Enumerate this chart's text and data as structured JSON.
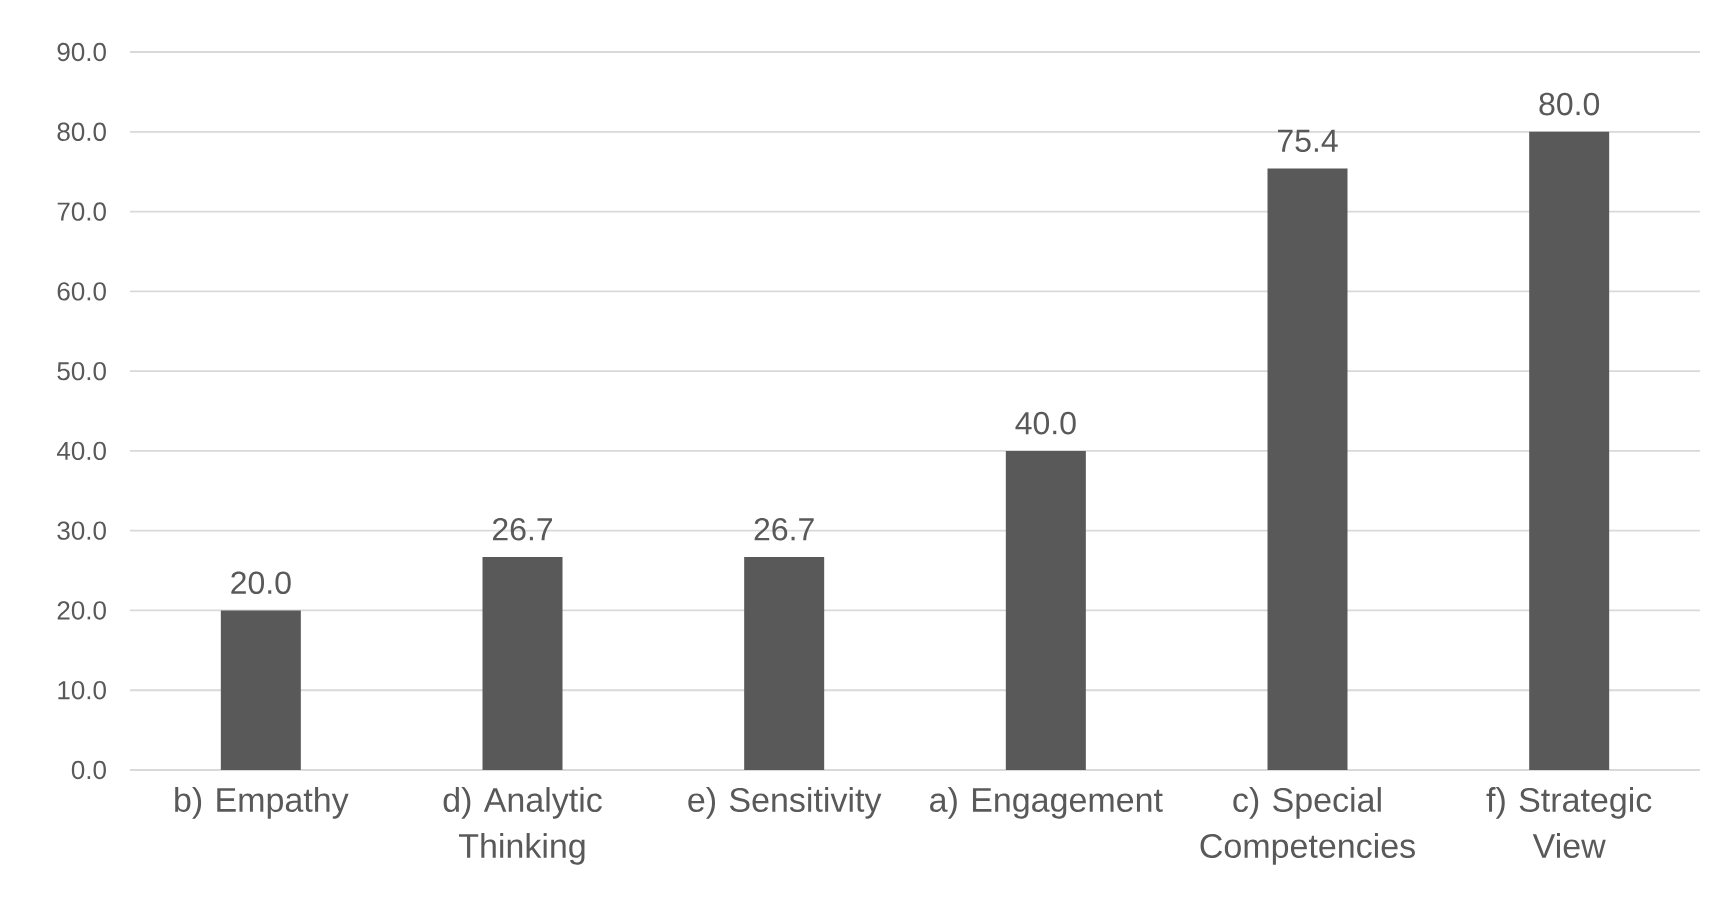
{
  "chart_data": {
    "type": "bar",
    "categories": [
      "b) Empathy",
      "d) Analytic Thinking",
      "e) Sensitivity",
      "a) Engagement",
      "c) Special Competencies",
      "f) Strategic View"
    ],
    "values": [
      20.0,
      26.7,
      26.7,
      40.0,
      75.4,
      80.0
    ],
    "value_labels": [
      "20.0",
      "26.7",
      "26.7",
      "40.0",
      "75.4",
      "80.0"
    ],
    "color": "#595959",
    "ylim": [
      0,
      90
    ],
    "yticks": [
      {
        "value": 0,
        "label": "0.0"
      },
      {
        "value": 10,
        "label": "10.0"
      },
      {
        "value": 20,
        "label": "20.0"
      },
      {
        "value": 30,
        "label": "30.0"
      },
      {
        "value": 40,
        "label": "40.0"
      },
      {
        "value": 50,
        "label": "50.0"
      },
      {
        "value": 60,
        "label": "60.0"
      },
      {
        "value": 70,
        "label": "70.0"
      },
      {
        "value": 80,
        "label": "80.0"
      },
      {
        "value": 90,
        "label": "90.0"
      }
    ],
    "grid": "y"
  }
}
